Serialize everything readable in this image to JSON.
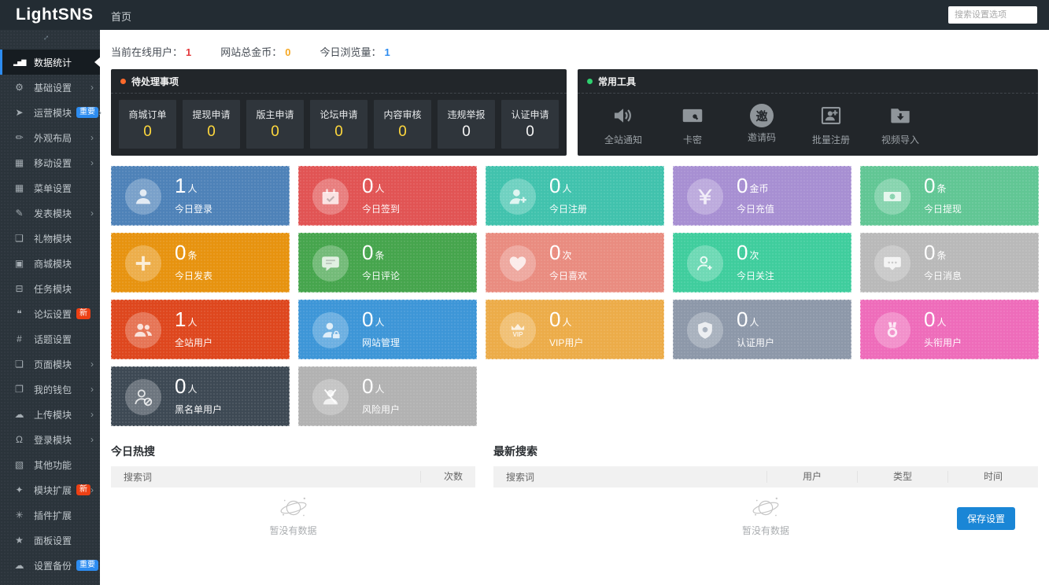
{
  "topbar": {
    "logo": "LightSNS",
    "home": "首页",
    "search_placeholder": "搜索设置选项"
  },
  "sidebar": {
    "collapse_icon": "collapse-icon",
    "items": [
      {
        "label": "数据统计",
        "icon": "bar-chart-icon",
        "arrow": ""
      },
      {
        "label": "基础设置",
        "icon": "gear-icon",
        "arrow": "›"
      },
      {
        "label": "运营模块",
        "icon": "send-icon",
        "badge": "重要",
        "badge_color": "#2d8cf0",
        "arrow": "›"
      },
      {
        "label": "外观布局",
        "icon": "brush-icon",
        "arrow": "›"
      },
      {
        "label": "移动设置",
        "icon": "grid-icon",
        "arrow": "›"
      },
      {
        "label": "菜单设置",
        "icon": "menu-grid-icon",
        "arrow": ""
      },
      {
        "label": "发表模块",
        "icon": "edit-icon",
        "arrow": "›"
      },
      {
        "label": "礼物模块",
        "icon": "gift-icon",
        "arrow": ""
      },
      {
        "label": "商城模块",
        "icon": "shop-icon",
        "arrow": ""
      },
      {
        "label": "任务模块",
        "icon": "calendar-icon",
        "arrow": ""
      },
      {
        "label": "论坛设置",
        "icon": "comments-icon",
        "badge": "新",
        "badge_color": "#ed4014",
        "arrow": ""
      },
      {
        "label": "话题设置",
        "icon": "hashtag-icon",
        "arrow": ""
      },
      {
        "label": "页面模块",
        "icon": "page-icon",
        "arrow": "›"
      },
      {
        "label": "我的钱包",
        "icon": "wallet-icon",
        "arrow": "›"
      },
      {
        "label": "上传模块",
        "icon": "cloud-upload-icon",
        "arrow": "›"
      },
      {
        "label": "登录模块",
        "icon": "bell-icon",
        "arrow": "›"
      },
      {
        "label": "其他功能",
        "icon": "box-icon",
        "arrow": ""
      },
      {
        "label": "模块扩展",
        "icon": "puzzle-icon",
        "badge": "新",
        "badge_color": "#ed4014",
        "arrow": "›"
      },
      {
        "label": "插件扩展",
        "icon": "plugin-icon",
        "arrow": ""
      },
      {
        "label": "面板设置",
        "icon": "star-icon",
        "arrow": ""
      },
      {
        "label": "设置备份",
        "icon": "backup-icon",
        "badge": "重要",
        "badge_color": "#2d8cf0",
        "arrow": ""
      }
    ]
  },
  "stats": [
    {
      "label": "当前在线用户：",
      "value": "1",
      "color": "#e4393c"
    },
    {
      "label": "网站总金币：",
      "value": "0",
      "color": "#f6a823"
    },
    {
      "label": "今日浏览量：",
      "value": "1",
      "color": "#2d8cf0"
    }
  ],
  "pending": {
    "title": "待处理事项",
    "dot_color": "#ff6a2b",
    "items": [
      {
        "label": "商城订单",
        "value": "0",
        "value_color": "#ffd83d"
      },
      {
        "label": "提现申请",
        "value": "0",
        "value_color": "#ffd83d"
      },
      {
        "label": "版主申请",
        "value": "0",
        "value_color": "#ffd83d"
      },
      {
        "label": "论坛申请",
        "value": "0",
        "value_color": "#ffd83d"
      },
      {
        "label": "内容审核",
        "value": "0",
        "value_color": "#ffd83d"
      },
      {
        "label": "违规举报",
        "value": "0",
        "value_color": "#f5f5f5"
      },
      {
        "label": "认证申请",
        "value": "0",
        "value_color": "#f5f5f5"
      }
    ]
  },
  "tools": {
    "title": "常用工具",
    "dot_color": "#2fd06f",
    "items": [
      {
        "label": "全站通知",
        "icon": "speaker-icon"
      },
      {
        "label": "卡密",
        "icon": "card-key-icon"
      },
      {
        "label": "邀请码",
        "icon": "invite-code-icon"
      },
      {
        "label": "批量注册",
        "icon": "batch-register-icon"
      },
      {
        "label": "视频导入",
        "icon": "video-import-icon"
      }
    ]
  },
  "cards": [
    {
      "value": "1",
      "unit": "人",
      "label": "今日登录",
      "color": "#4e82b8",
      "icon": "user-icon"
    },
    {
      "value": "0",
      "unit": "人",
      "label": "今日签到",
      "color": "#e15454",
      "icon": "calendar-check-icon"
    },
    {
      "value": "0",
      "unit": "人",
      "label": "今日注册",
      "color": "#41c2ad",
      "icon": "user-plus-icon"
    },
    {
      "value": "0",
      "unit": "金币",
      "label": "今日充值",
      "color": "#a78fd2",
      "icon": "yen-icon"
    },
    {
      "value": "0",
      "unit": "条",
      "label": "今日提现",
      "color": "#61c694",
      "icon": "banknote-icon"
    },
    {
      "value": "0",
      "unit": "条",
      "label": "今日发表",
      "color": "#e7930f",
      "icon": "plus-icon"
    },
    {
      "value": "0",
      "unit": "条",
      "label": "今日评论",
      "color": "#46a54d",
      "icon": "comment-icon"
    },
    {
      "value": "0",
      "unit": "次",
      "label": "今日喜欢",
      "color": "#e98c80",
      "icon": "heart-icon"
    },
    {
      "value": "0",
      "unit": "次",
      "label": "今日关注",
      "color": "#3fcd9d",
      "icon": "user-follow-icon"
    },
    {
      "value": "0",
      "unit": "条",
      "label": "今日消息",
      "color": "#b9b9b9",
      "icon": "message-icon"
    },
    {
      "value": "1",
      "unit": "人",
      "label": "全站用户",
      "color": "#de471e",
      "icon": "users-icon"
    },
    {
      "value": "0",
      "unit": "人",
      "label": "网站管理",
      "color": "#3d96d7",
      "icon": "admin-user-icon"
    },
    {
      "value": "0",
      "unit": "人",
      "label": "VIP用户",
      "color": "#ecac49",
      "icon": "vip-icon"
    },
    {
      "value": "0",
      "unit": "人",
      "label": "认证用户",
      "color": "#8d98a9",
      "icon": "shield-icon"
    },
    {
      "value": "0",
      "unit": "人",
      "label": "头衔用户",
      "color": "#ee6cba",
      "icon": "medal-icon"
    },
    {
      "value": "0",
      "unit": "人",
      "label": "黑名单用户",
      "color": "#3d4954",
      "icon": "user-block-icon"
    },
    {
      "value": "0",
      "unit": "人",
      "label": "风险用户",
      "color": "#b2b2b2",
      "icon": "user-risk-icon"
    }
  ],
  "hot_search": {
    "title": "今日热搜",
    "columns": [
      "搜索词",
      "次数"
    ],
    "empty_text": "暂没有数据"
  },
  "latest_search": {
    "title": "最新搜索",
    "columns": [
      "搜索词",
      "用户",
      "类型",
      "时间"
    ],
    "empty_text": "暂没有数据"
  },
  "save_button_label": "保存设置",
  "save_button_color": "#1a86d6"
}
